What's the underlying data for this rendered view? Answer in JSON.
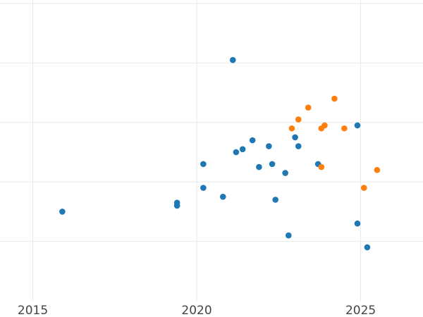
{
  "chart_data": {
    "type": "scatter",
    "title": "",
    "xlabel": "",
    "ylabel": "",
    "xlim": [
      2014,
      2026.9
    ],
    "ylim": [
      0,
      10
    ],
    "x_ticks": [
      2015,
      2020,
      2025
    ],
    "x_tick_labels": [
      "2015",
      "2020",
      "2025"
    ],
    "y_grid": [
      2,
      4,
      6,
      8,
      10
    ],
    "grid": true,
    "legend": "none",
    "series": [
      {
        "color": "#1f77b4",
        "points": [
          [
            2015.9,
            3.0
          ],
          [
            2019.4,
            3.2
          ],
          [
            2019.4,
            3.3
          ],
          [
            2020.2,
            3.8
          ],
          [
            2020.2,
            4.6
          ],
          [
            2020.8,
            3.5
          ],
          [
            2021.1,
            8.1
          ],
          [
            2021.2,
            5.0
          ],
          [
            2021.4,
            5.1
          ],
          [
            2021.7,
            5.4
          ],
          [
            2021.9,
            4.5
          ],
          [
            2022.2,
            5.2
          ],
          [
            2022.3,
            4.6
          ],
          [
            2022.4,
            3.4
          ],
          [
            2022.7,
            4.3
          ],
          [
            2022.8,
            2.2
          ],
          [
            2023.0,
            5.5
          ],
          [
            2023.1,
            5.2
          ],
          [
            2023.7,
            4.6
          ],
          [
            2024.9,
            2.6
          ],
          [
            2024.9,
            5.9
          ],
          [
            2025.2,
            1.8
          ]
        ]
      },
      {
        "color": "#ff7f0e",
        "points": [
          [
            2022.9,
            5.8
          ],
          [
            2023.1,
            6.1
          ],
          [
            2023.4,
            6.5
          ],
          [
            2023.8,
            4.5
          ],
          [
            2023.8,
            5.8
          ],
          [
            2023.9,
            5.9
          ],
          [
            2024.2,
            6.8
          ],
          [
            2024.5,
            5.8
          ],
          [
            2025.1,
            3.8
          ],
          [
            2025.5,
            4.4
          ]
        ]
      }
    ]
  }
}
